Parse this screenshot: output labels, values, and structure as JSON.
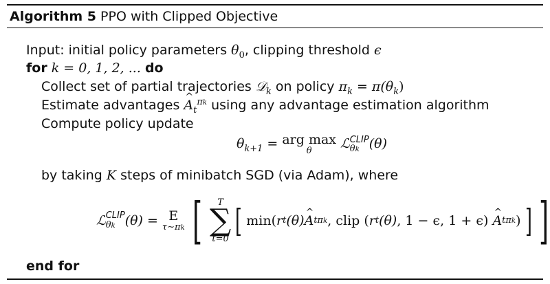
{
  "algorithm": {
    "number_label": "Algorithm 5",
    "name": "PPO with Clipped Objective"
  },
  "lines": {
    "input_prefix": "Input: initial policy parameters",
    "input_clip": ", clipping threshold",
    "for_kw": "for",
    "for_range": "k = 0, 1, 2, ...",
    "do_kw": "do",
    "collect": "Collect set of partial trajectories",
    "collect_on": "on policy",
    "estimate": "Estimate advantages",
    "estimate_rest": "using any advantage estimation algorithm",
    "compute": "Compute policy update",
    "by_taking": "by taking",
    "by_taking_rest": "steps of minibatch SGD (via Adam), where",
    "end_for": "end for"
  },
  "math": {
    "theta": "θ",
    "theta0_sub": "0",
    "epsilon": "ϵ",
    "D": "𝒟",
    "k": "k",
    "pi": "π",
    "pi_k_rhs": "π(θ",
    "A": "A",
    "t": "t",
    "theta_k1_sub": "k+1",
    "argmax": "arg max",
    "L": "ℒ",
    "clip_sup": "CLIP",
    "theta_paren": "(θ)",
    "K": "K",
    "E": "E",
    "E_sub": "τ∼π",
    "sum": "∑",
    "sum_top": "T",
    "sum_bot": "t=0",
    "min": "min",
    "clip": "clip",
    "r": "r",
    "one_minus_eps": "1 − ϵ",
    "one_plus_eps": "1 + ϵ"
  }
}
